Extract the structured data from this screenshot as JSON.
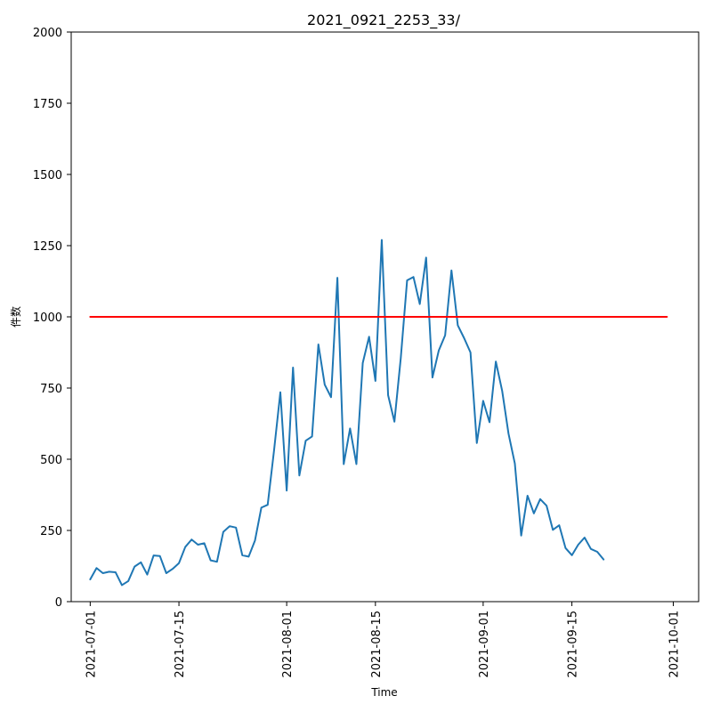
{
  "chart_data": {
    "type": "line",
    "title": "2021_0921_2253_33/",
    "xlabel": "Time",
    "ylabel": "件数",
    "ylim": [
      0,
      2000
    ],
    "yticks": [
      "0",
      "250",
      "500",
      "750",
      "1000",
      "1250",
      "1500",
      "1750",
      "2000"
    ],
    "xticks": [
      "2021-07-01",
      "2021-07-15",
      "2021-08-01",
      "2021-08-15",
      "2021-09-01",
      "2021-09-15",
      "2021-10-01"
    ],
    "x_range": [
      "2021-06-28",
      "2021-10-05"
    ],
    "grid": false,
    "series": [
      {
        "color": "#1f77b4",
        "start_date": "2021-07-01",
        "step_days": 1,
        "values": [
          78,
          118,
          100,
          105,
          103,
          58,
          72,
          123,
          138,
          95,
          162,
          160,
          100,
          115,
          135,
          192,
          218,
          200,
          205,
          145,
          140,
          245,
          265,
          260,
          163,
          158,
          215,
          330,
          340,
          530,
          735,
          390,
          822,
          443,
          565,
          580,
          903,
          762,
          718,
          1137,
          483,
          608,
          483,
          838,
          930,
          775,
          1270,
          725,
          632,
          855,
          1128,
          1140,
          1045,
          1208,
          787,
          882,
          935,
          1163,
          970,
          925,
          875,
          557,
          705,
          630,
          843,
          740,
          590,
          485,
          232,
          372,
          310,
          360,
          337,
          252,
          268,
          188,
          163,
          200,
          225,
          185,
          175,
          148
        ]
      },
      {
        "color": "#ff0000",
        "x": [
          "2021-07-01",
          "2021-09-30"
        ],
        "values": [
          1000,
          1000
        ]
      }
    ]
  }
}
